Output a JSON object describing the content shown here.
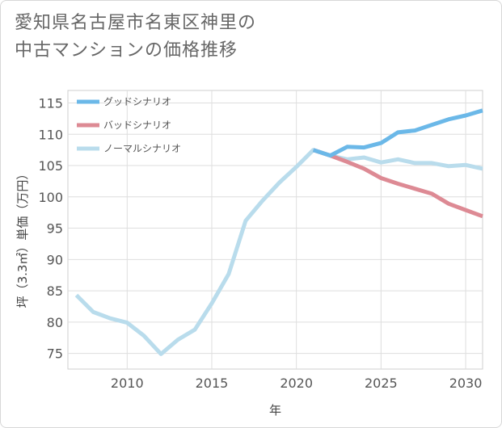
{
  "title": {
    "line1": "愛知県名古屋市名東区神里の",
    "line2": "中古マンションの価格推移"
  },
  "chart_data": {
    "type": "line",
    "xlabel": "年",
    "ylabel": "坪（3.3㎡）単価（万円）",
    "xlim": [
      2006.5,
      2031
    ],
    "ylim": [
      72.5,
      117
    ],
    "x_ticks": [
      2010,
      2015,
      2020,
      2025,
      2030
    ],
    "y_ticks": [
      75,
      80,
      85,
      90,
      95,
      100,
      105,
      110,
      115
    ],
    "grid": true,
    "legend_position": "top-left",
    "series": [
      {
        "name": "グッドシナリオ",
        "color": "#6bb8e8",
        "x": [
          2021,
          2022,
          2023,
          2024,
          2025,
          2026,
          2027,
          2028,
          2029,
          2030,
          2031
        ],
        "y": [
          107.5,
          106.6,
          108.0,
          107.9,
          108.6,
          110.3,
          110.6,
          111.5,
          112.4,
          113.0,
          113.8
        ]
      },
      {
        "name": "バッドシナリオ",
        "color": "#dd8a94",
        "x": [
          2021,
          2022,
          2023,
          2024,
          2025,
          2026,
          2027,
          2028,
          2029,
          2030,
          2031
        ],
        "y": [
          107.5,
          106.6,
          105.6,
          104.5,
          103.0,
          102.1,
          101.3,
          100.5,
          98.9,
          97.9,
          96.9
        ]
      },
      {
        "name": "ノーマルシナリオ",
        "color": "#b9dcec",
        "x": [
          2007,
          2008,
          2009,
          2010,
          2011,
          2012,
          2013,
          2014,
          2015,
          2016,
          2017,
          2018,
          2019,
          2020,
          2021,
          2022,
          2023,
          2024,
          2025,
          2026,
          2027,
          2028,
          2029,
          2030,
          2031
        ],
        "y": [
          84.3,
          81.6,
          80.6,
          79.9,
          77.8,
          74.9,
          77.2,
          78.8,
          83.0,
          87.7,
          96.2,
          99.4,
          102.3,
          104.8,
          107.5,
          106.6,
          106.0,
          106.3,
          105.5,
          106.0,
          105.4,
          105.4,
          104.9,
          105.1,
          104.5
        ]
      }
    ]
  }
}
